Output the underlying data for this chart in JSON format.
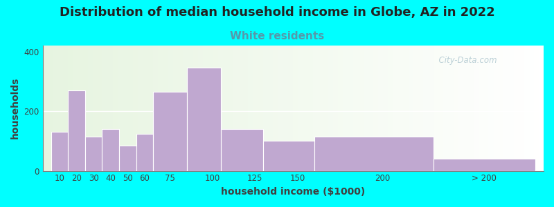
{
  "title": "Distribution of median household income in Globe, AZ in 2022",
  "subtitle": "White residents",
  "xlabel": "household income ($1000)",
  "ylabel": "households",
  "title_fontsize": 13,
  "subtitle_fontsize": 11,
  "subtitle_color": "#5599aa",
  "bar_color": "#c0a8d0",
  "background_color": "#00ffff",
  "plot_bg_left": "#e6f4e0",
  "plot_bg_right": "#ffffff",
  "values": [
    130,
    270,
    115,
    140,
    85,
    125,
    265,
    345,
    140,
    100,
    115,
    40
  ],
  "bar_lefts": [
    5,
    15,
    25,
    35,
    45,
    55,
    65,
    85,
    105,
    130,
    160,
    230
  ],
  "bar_widths": [
    10,
    10,
    10,
    10,
    10,
    10,
    20,
    20,
    25,
    30,
    70,
    60
  ],
  "tick_positions": [
    10,
    20,
    30,
    40,
    50,
    60,
    75,
    100,
    125,
    150,
    200,
    260
  ],
  "tick_labels": [
    "10",
    "20",
    "30",
    "40",
    "50",
    "60",
    "75",
    "100",
    "125",
    "150",
    "200",
    "> 200"
  ],
  "xlim": [
    0,
    295
  ],
  "ylim": [
    0,
    420
  ],
  "yticks": [
    0,
    200,
    400
  ],
  "watermark": "  City-Data.com",
  "watermark_color": "#b0c8d0"
}
